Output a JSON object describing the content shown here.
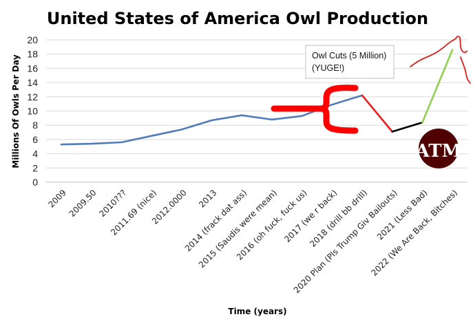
{
  "chart_data": {
    "type": "line",
    "title": "United States of America Owl Production",
    "xlabel": "Time (years)",
    "ylabel": "Millions Of Owls Per Day",
    "ylim": [
      0,
      20
    ],
    "yticks": [
      0,
      2,
      4,
      6,
      8,
      10,
      12,
      14,
      16,
      18,
      20
    ],
    "grid": "horizontal",
    "categories": [
      "2009",
      "2009.50",
      "2010???",
      "2011.69 (nice)",
      "2012.0000",
      "2013",
      "2014 (frack dat ass)",
      "2015 (Saudis were mean)",
      "2016 (oh fuck, fuck us)",
      "2017 (we r back)",
      "2018 (drill bb drill)",
      "2020 Plan (Pls Trump Giv Bailouts)",
      "2021 (Less Bad)",
      "2022 (We Are Back, Bitches)"
    ],
    "series": [
      {
        "color": "#4f7bbe",
        "points": [
          [
            0,
            5.3
          ],
          [
            1,
            5.4
          ],
          [
            2,
            5.6
          ],
          [
            3,
            6.5
          ],
          [
            4,
            7.4
          ],
          [
            5,
            8.7
          ],
          [
            6,
            9.4
          ],
          [
            7,
            8.8
          ],
          [
            8,
            9.3
          ],
          [
            9,
            10.9
          ],
          [
            10,
            12.2
          ]
        ]
      },
      {
        "color": "#ee1c1c",
        "points": [
          [
            10,
            12.2
          ],
          [
            11,
            7.1
          ]
        ]
      },
      {
        "color": "#000000",
        "points": [
          [
            11,
            7.1
          ],
          [
            12,
            8.4
          ]
        ]
      },
      {
        "color": "#8fd14f",
        "points": [
          [
            12,
            8.4
          ],
          [
            13,
            18.6
          ]
        ]
      }
    ],
    "annotations": [
      {
        "text_lines": [
          "Owl Cuts (5 Million)",
          "(YUGE!)"
        ]
      }
    ],
    "colors": {
      "bracket": "#ff0000",
      "scribble": "#e11b1b",
      "gridline": "#d9d9d9",
      "logo_bg": "#500000"
    },
    "logo": {
      "text": "ATM"
    }
  }
}
